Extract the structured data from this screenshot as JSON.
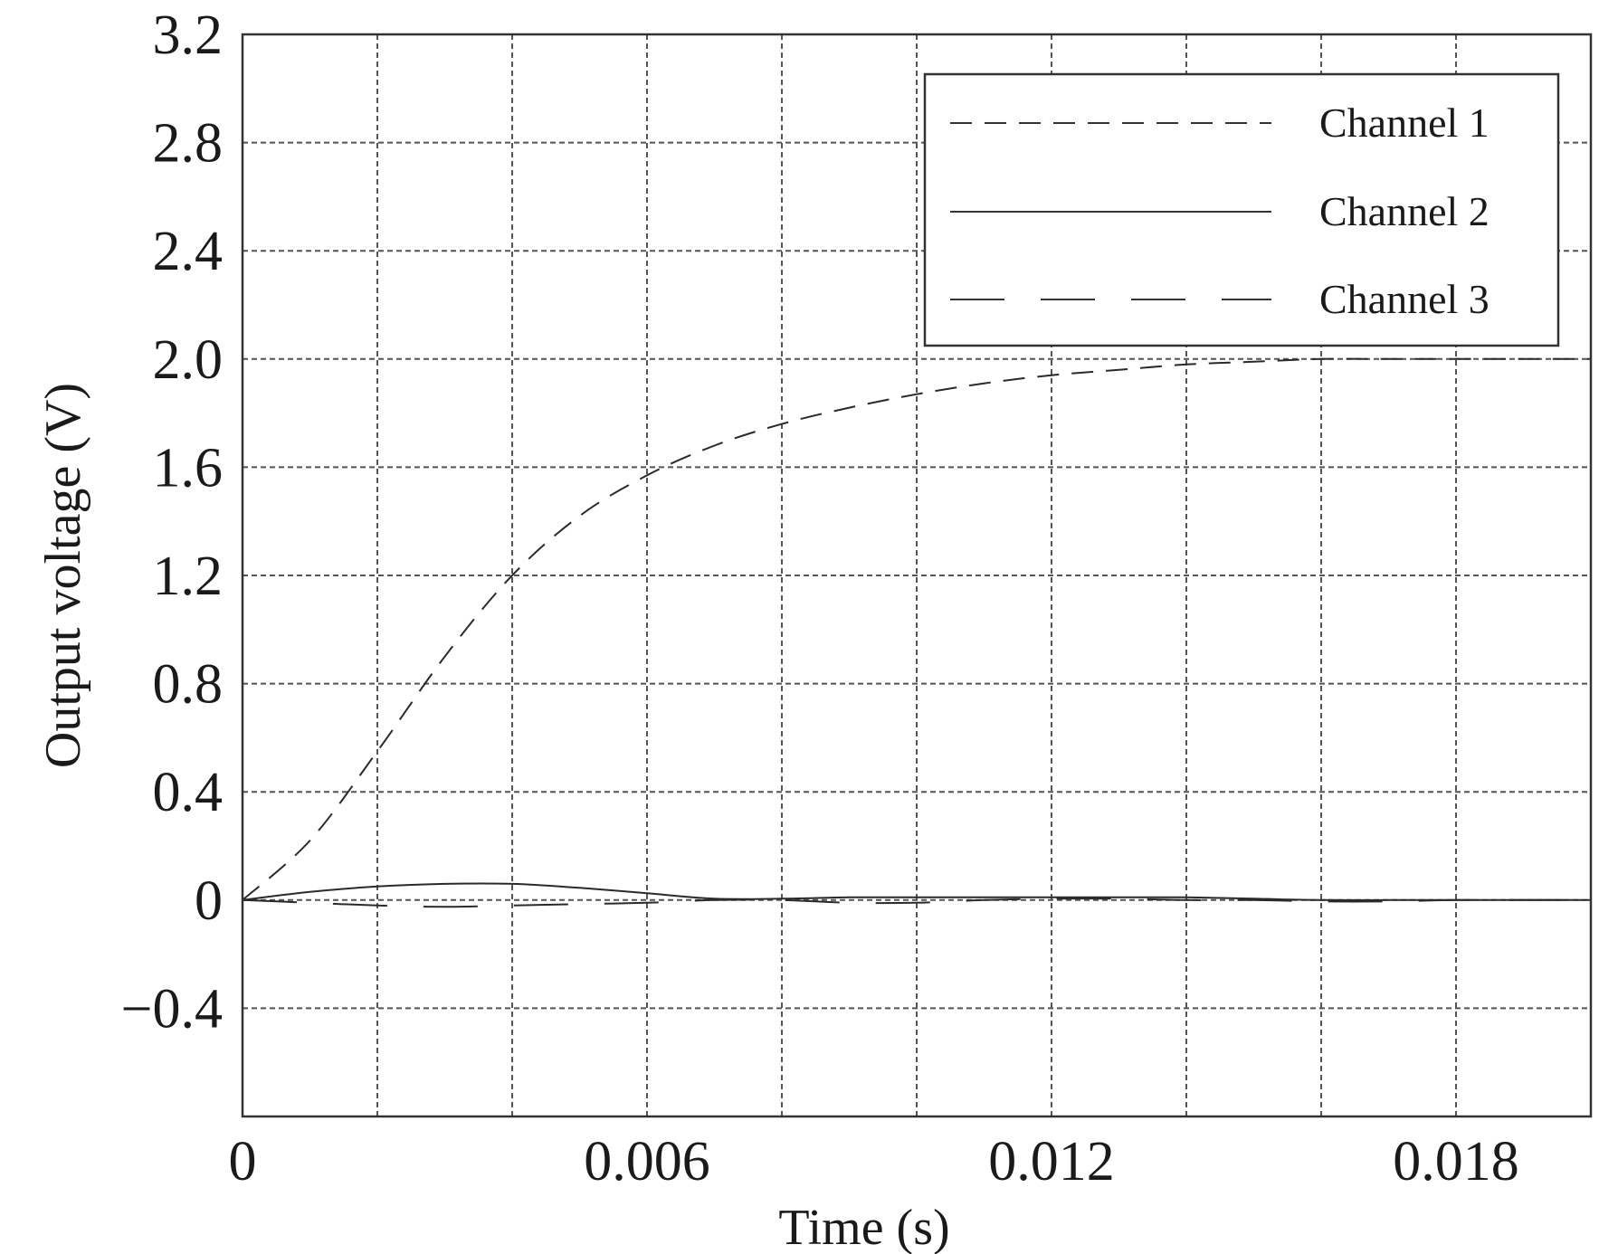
{
  "chart_data": {
    "type": "line",
    "title": "",
    "xlabel": "Time (s)",
    "ylabel": "Output voltage (V)",
    "xlim": [
      0,
      0.02
    ],
    "ylim": [
      -0.8,
      3.2
    ],
    "x_ticks": [
      0,
      0.006,
      0.012,
      0.018
    ],
    "x_tick_labels": [
      "0",
      "0.006",
      "0.012",
      "0.018"
    ],
    "x_grid": [
      0.002,
      0.004,
      0.006,
      0.008,
      0.01,
      0.012,
      0.014,
      0.016,
      0.018
    ],
    "y_ticks": [
      -0.4,
      0,
      0.4,
      0.8,
      1.2,
      1.6,
      2.0,
      2.4,
      2.8,
      3.2
    ],
    "y_tick_labels": [
      "−0.4",
      "0",
      "0.4",
      "0.8",
      "1.2",
      "1.6",
      "2.0",
      "2.4",
      "2.8",
      "3.2"
    ],
    "grid": true,
    "legend_position": "top-right",
    "series": [
      {
        "name": "Channel 1",
        "style": "dashed",
        "x": [
          0,
          0.001,
          0.002,
          0.003,
          0.004,
          0.005,
          0.006,
          0.007,
          0.008,
          0.009,
          0.01,
          0.011,
          0.012,
          0.013,
          0.014,
          0.015,
          0.016,
          0.017,
          0.018,
          0.019,
          0.02
        ],
        "y": [
          0,
          0.22,
          0.55,
          0.9,
          1.2,
          1.42,
          1.57,
          1.68,
          1.76,
          1.82,
          1.87,
          1.91,
          1.94,
          1.96,
          1.98,
          1.99,
          2.0,
          2.0,
          2.0,
          2.0,
          2.0
        ]
      },
      {
        "name": "Channel 2",
        "style": "solid",
        "x": [
          0,
          0.001,
          0.002,
          0.003,
          0.004,
          0.005,
          0.006,
          0.007,
          0.008,
          0.009,
          0.01,
          0.011,
          0.012,
          0.013,
          0.014,
          0.015,
          0.016,
          0.017,
          0.018,
          0.019,
          0.02
        ],
        "y": [
          0,
          0.03,
          0.05,
          0.06,
          0.06,
          0.045,
          0.025,
          0.005,
          0.005,
          0.01,
          0.01,
          0.01,
          0.01,
          0.01,
          0.01,
          0.005,
          0.0,
          0.0,
          0.0,
          0.0,
          0.0
        ]
      },
      {
        "name": "Channel 3",
        "style": "long-dashed",
        "x": [
          0,
          0.001,
          0.002,
          0.003,
          0.004,
          0.005,
          0.006,
          0.007,
          0.008,
          0.009,
          0.01,
          0.011,
          0.012,
          0.013,
          0.014,
          0.015,
          0.016,
          0.017,
          0.018,
          0.019,
          0.02
        ],
        "y": [
          0,
          -0.01,
          -0.02,
          -0.025,
          -0.02,
          -0.015,
          -0.01,
          0.0,
          0.0,
          -0.01,
          -0.01,
          0.0,
          0.005,
          0.005,
          0.0,
          0.0,
          -0.005,
          -0.005,
          0.0,
          0.0,
          0.0
        ]
      }
    ]
  }
}
